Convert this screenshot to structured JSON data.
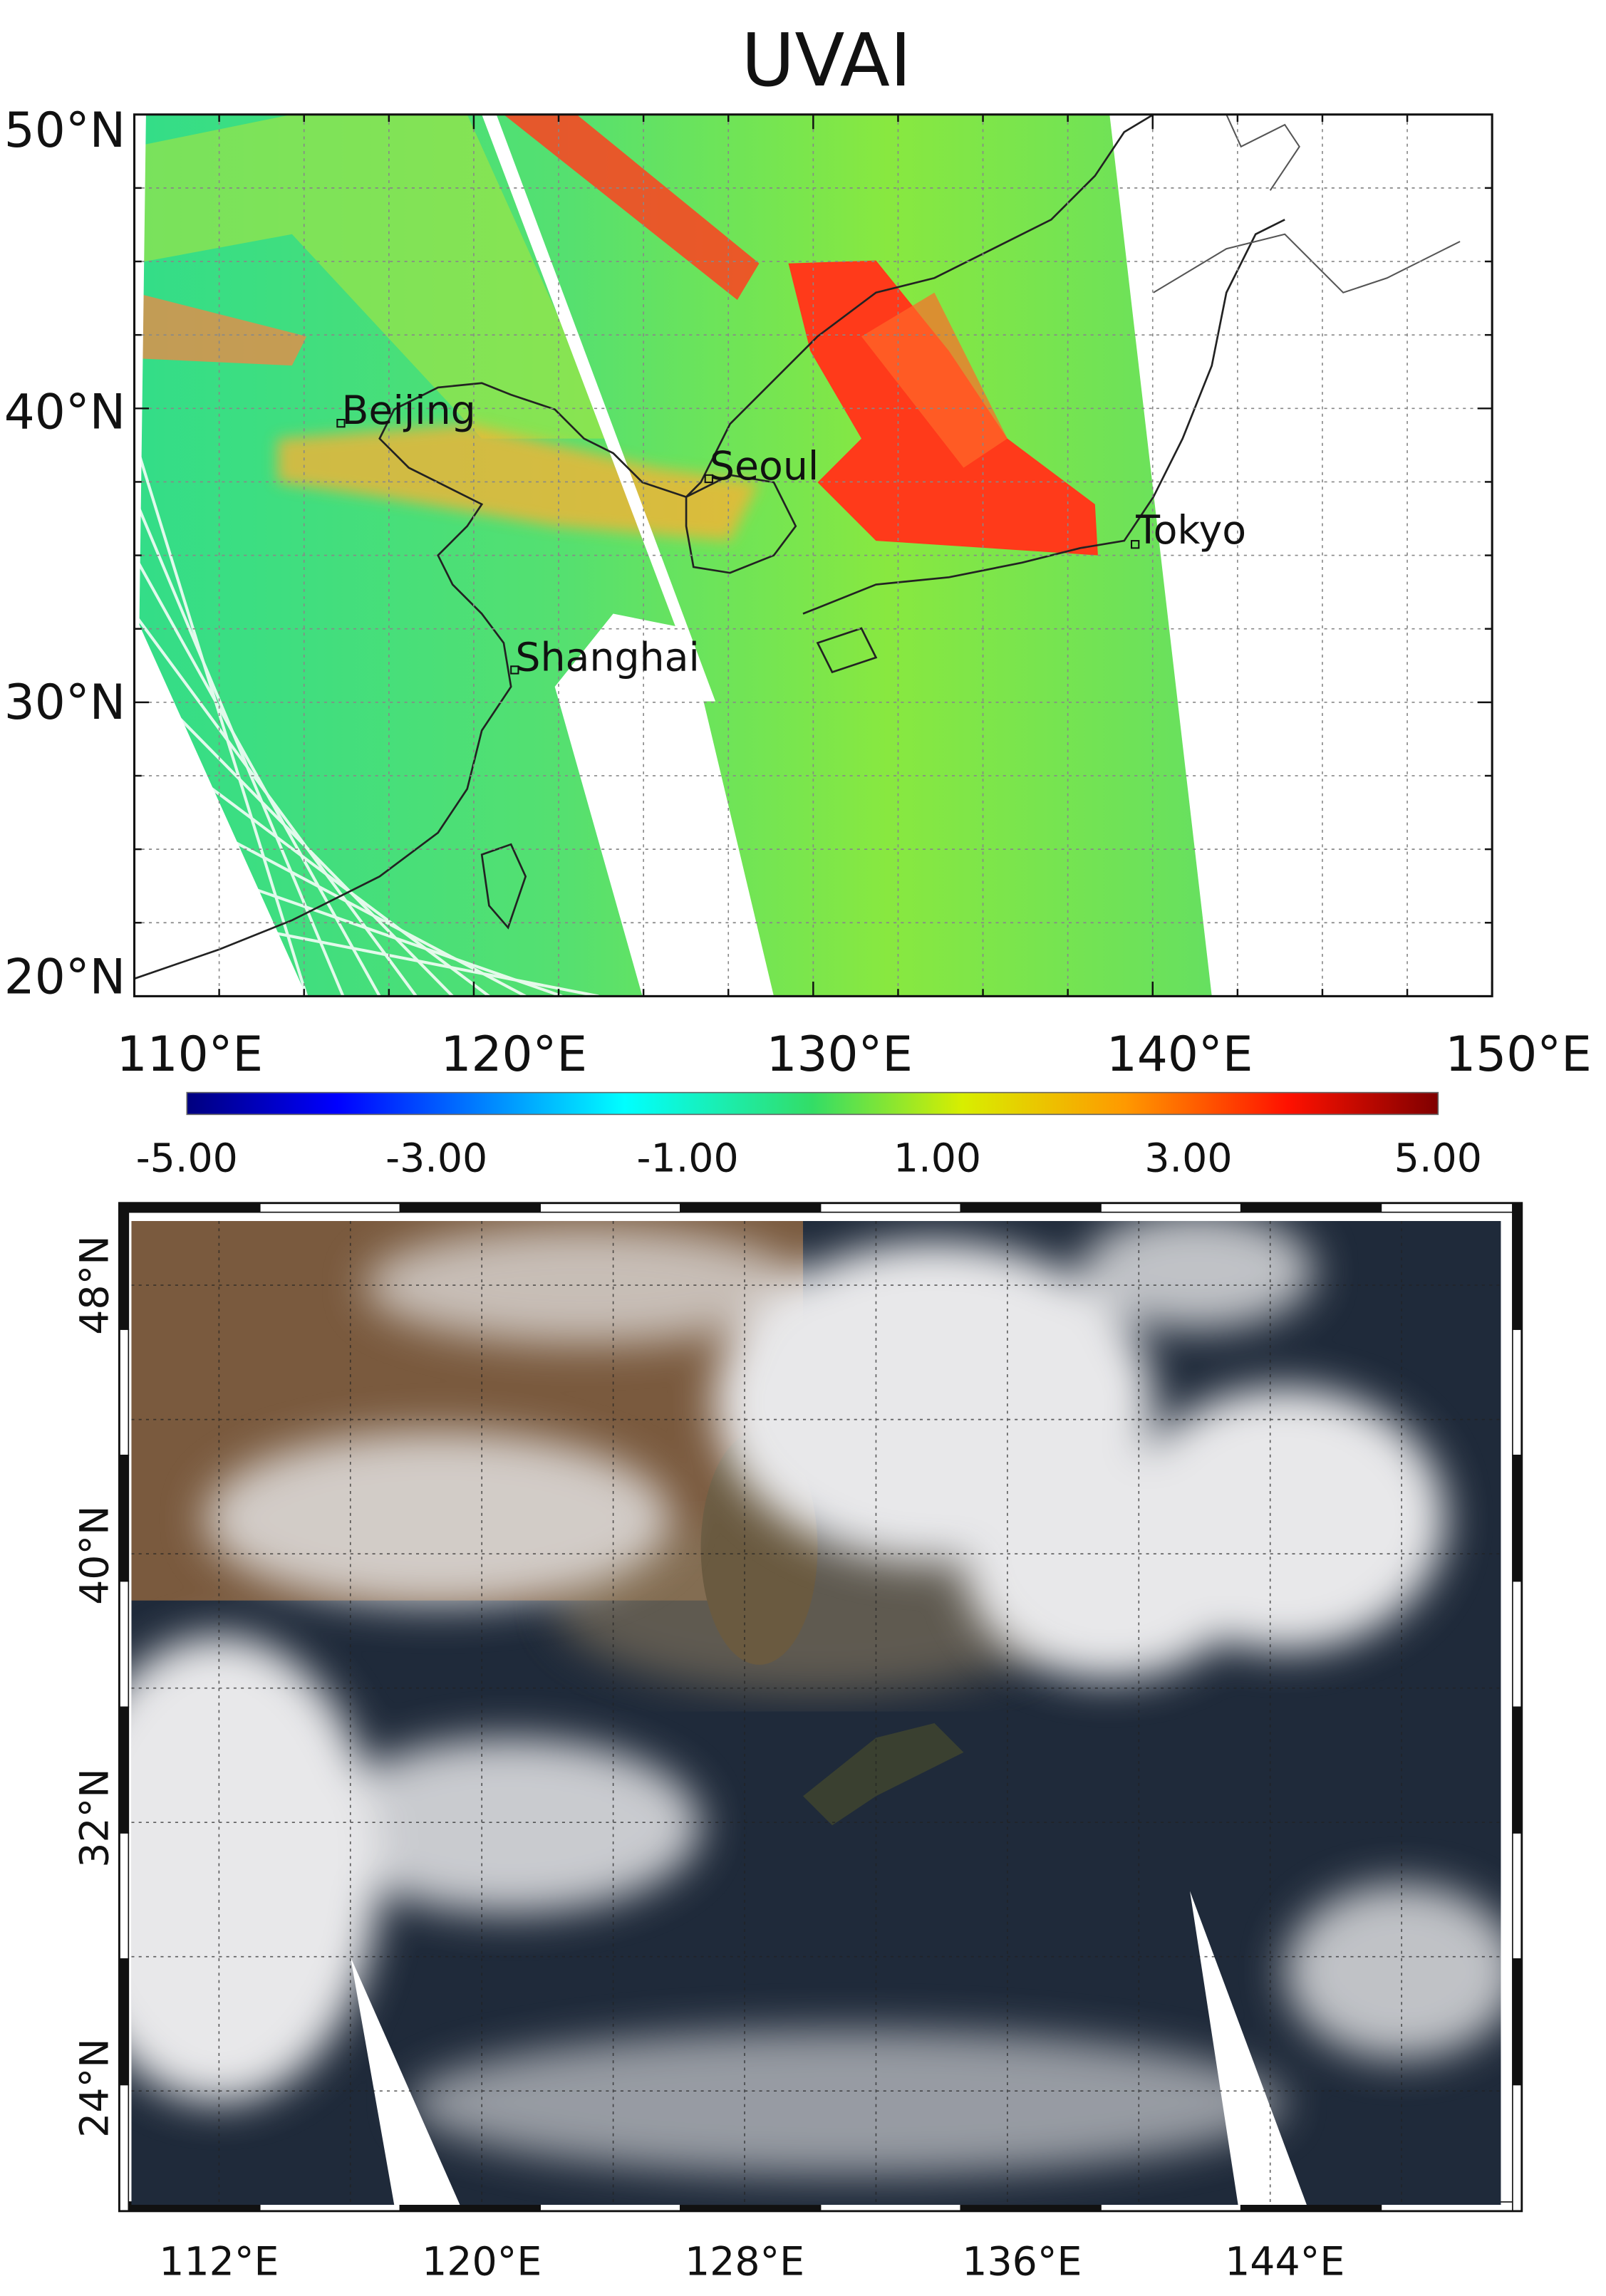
{
  "top_panel": {
    "title": "UVAI",
    "y_ticks": [
      "50°N",
      "40°N",
      "30°N",
      "20°N"
    ],
    "x_ticks": [
      "110°E",
      "120°E",
      "130°E",
      "140°E",
      "150°E"
    ],
    "cities": [
      "Beijing",
      "Seoul",
      "Shanghai",
      "Tokyo"
    ],
    "colorbar_ticks": [
      "-5.00",
      "-3.00",
      "-1.00",
      "1.00",
      "3.00",
      "5.00"
    ]
  },
  "bottom_panel": {
    "y_ticks": [
      "48°N",
      "40°N",
      "32°N",
      "24°N"
    ],
    "x_ticks": [
      "112°E",
      "120°E",
      "128°E",
      "136°E",
      "144°E"
    ]
  }
}
